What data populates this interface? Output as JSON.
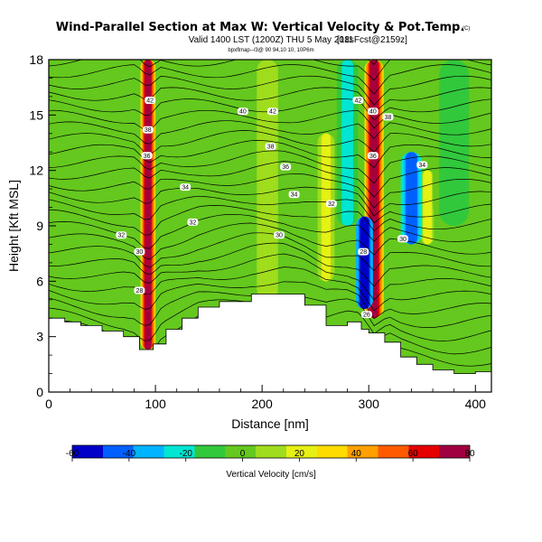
{
  "chart_data": {
    "type": "heatmap",
    "title": "Wind-Parallel Section at Max W: Vertical Velocity & Pot.Temp.",
    "title_badge": "(C)",
    "subtitle": "Valid 1400 LST (1200Z) THU 5 May 2011",
    "subtitle_small": "(12Z)",
    "subtitle_tag": "[18sFcst@2159z]",
    "attribution": "bpxflmap--/3@ 90 94,10 10, 10P6m",
    "xlabel": "Distance [nm]",
    "ylabel": "Height [Kft MSL]",
    "xlim": [
      0,
      415
    ],
    "ylim": [
      0,
      18
    ],
    "x_ticks": [
      0,
      100,
      200,
      300,
      400
    ],
    "y_ticks": [
      0,
      3,
      6,
      9,
      12,
      15,
      18
    ],
    "colorbar": {
      "label": "Vertical Velocity [cm/s]",
      "range": [
        -60,
        80
      ],
      "ticks": [
        -60,
        -40,
        -20,
        0,
        20,
        40,
        60,
        80
      ],
      "colors": [
        "#0000c8",
        "#0060ff",
        "#00b4ff",
        "#00e6d2",
        "#32c83c",
        "#64c81e",
        "#a0dc1e",
        "#e6f014",
        "#ffdc00",
        "#ffa000",
        "#ff5a00",
        "#e60000",
        "#a00040"
      ]
    },
    "terrain": {
      "x": [
        0,
        15,
        30,
        50,
        70,
        85,
        98,
        110,
        125,
        140,
        160,
        190,
        220,
        240,
        260,
        280,
        293,
        300,
        315,
        330,
        345,
        360,
        380,
        400,
        415
      ],
      "top": [
        4.0,
        3.8,
        3.6,
        3.3,
        3.0,
        2.3,
        2.6,
        3.4,
        4.0,
        4.6,
        4.9,
        5.3,
        5.3,
        4.7,
        3.6,
        3.8,
        3.4,
        3.2,
        2.7,
        1.9,
        1.5,
        1.2,
        1.0,
        1.1,
        1.2
      ]
    },
    "updraft_bands": [
      {
        "x": 93,
        "y0": 2.3,
        "y1": 18,
        "half_width": 7,
        "peak": 75
      },
      {
        "x": 305,
        "y0": 4,
        "y1": 18,
        "half_width": 9,
        "peak": 70
      },
      {
        "x": 355,
        "y0": 8,
        "y1": 12,
        "half_width": 6,
        "peak": 25
      },
      {
        "x": 260,
        "y0": 6,
        "y1": 14,
        "half_width": 8,
        "peak": 20
      },
      {
        "x": 205,
        "y0": 5,
        "y1": 18,
        "half_width": 10,
        "peak": 15
      }
    ],
    "downdraft_bands": [
      {
        "x": 296,
        "y0": 4.5,
        "y1": 9.5,
        "half_width": 8,
        "peak": -60
      },
      {
        "x": 340,
        "y0": 8,
        "y1": 13,
        "half_width": 10,
        "peak": -45
      },
      {
        "x": 280,
        "y0": 9,
        "y1": 18,
        "half_width": 10,
        "peak": -20
      },
      {
        "x": 380,
        "y0": 9,
        "y1": 18,
        "half_width": 20,
        "peak": -10
      },
      {
        "x": 110,
        "y0": 4,
        "y1": 12,
        "half_width": 8,
        "peak": -5
      }
    ],
    "contour_labels": [
      {
        "x": 95,
        "y": 15.8,
        "text": "42"
      },
      {
        "x": 93,
        "y": 14.2,
        "text": "38"
      },
      {
        "x": 92,
        "y": 12.8,
        "text": "36"
      },
      {
        "x": 128,
        "y": 11.1,
        "text": "34"
      },
      {
        "x": 68,
        "y": 8.5,
        "text": "32"
      },
      {
        "x": 135,
        "y": 9.2,
        "text": "32"
      },
      {
        "x": 85,
        "y": 7.6,
        "text": "30"
      },
      {
        "x": 85,
        "y": 5.5,
        "text": "28"
      },
      {
        "x": 182,
        "y": 15.2,
        "text": "40"
      },
      {
        "x": 210,
        "y": 15.2,
        "text": "42"
      },
      {
        "x": 208,
        "y": 13.3,
        "text": "38"
      },
      {
        "x": 222,
        "y": 12.2,
        "text": "36"
      },
      {
        "x": 230,
        "y": 10.7,
        "text": "34"
      },
      {
        "x": 216,
        "y": 8.5,
        "text": "30"
      },
      {
        "x": 265,
        "y": 10.2,
        "text": "32"
      },
      {
        "x": 290,
        "y": 15.8,
        "text": "42"
      },
      {
        "x": 304,
        "y": 15.2,
        "text": "40"
      },
      {
        "x": 318,
        "y": 14.9,
        "text": "38"
      },
      {
        "x": 304,
        "y": 12.8,
        "text": "36"
      },
      {
        "x": 350,
        "y": 12.3,
        "text": "34"
      },
      {
        "x": 332,
        "y": 8.3,
        "text": "30"
      },
      {
        "x": 295,
        "y": 7.6,
        "text": "28"
      },
      {
        "x": 298,
        "y": 4.2,
        "text": "26"
      }
    ]
  }
}
